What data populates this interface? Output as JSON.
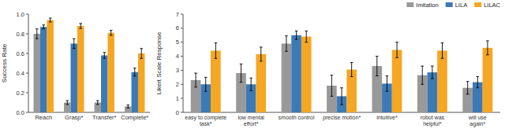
{
  "chart_data": [
    {
      "type": "bar",
      "categories": [
        "Reach",
        "Grasp*",
        "Transfer*",
        "Complete*"
      ],
      "series": [
        {
          "color": "#999999",
          "values": [
            0.8,
            0.1,
            0.1,
            0.06
          ],
          "errors": [
            0.05,
            0.02,
            0.02,
            0.015
          ]
        },
        {
          "color": "#3d7ab5",
          "values": [
            0.87,
            0.7,
            0.58,
            0.41
          ],
          "errors": [
            0.02,
            0.05,
            0.03,
            0.04
          ]
        },
        {
          "color": "#f5a623",
          "values": [
            0.94,
            0.88,
            0.81,
            0.6
          ],
          "errors": [
            0.02,
            0.025,
            0.025,
            0.05
          ]
        }
      ],
      "ylabel": "Success Rate",
      "ylim": [
        0.0,
        1.0
      ],
      "yticks": [
        {
          "value": 0,
          "label": "0.0"
        },
        0.2,
        0.4,
        0.6,
        0.8,
        {
          "value": 1,
          "label": "1.0"
        }
      ]
    },
    {
      "type": "bar",
      "categories": [
        "easy to complete\ntask*",
        "low mental\neffort*",
        "smooth control",
        "precise motion*",
        "intuitive*",
        "robot was\nhelpful*",
        "will use\nagain*"
      ],
      "series": [
        {
          "name": "Imitation",
          "color": "#999999",
          "values": [
            2.3,
            2.8,
            4.9,
            1.9,
            3.3,
            2.65,
            1.75
          ],
          "errors": [
            0.5,
            0.65,
            0.55,
            0.75,
            0.7,
            0.65,
            0.45
          ]
        },
        {
          "name": "LILA",
          "color": "#3d7ab5",
          "values": [
            2.0,
            2.0,
            5.5,
            1.15,
            2.05,
            2.85,
            2.15
          ],
          "errors": [
            0.5,
            0.45,
            0.3,
            0.6,
            0.55,
            0.45,
            0.4
          ]
        },
        {
          "name": "LILAC",
          "color": "#f5a623",
          "values": [
            4.4,
            4.15,
            5.4,
            3.05,
            4.45,
            4.4,
            4.6
          ],
          "errors": [
            0.55,
            0.5,
            0.4,
            0.5,
            0.55,
            0.55,
            0.5
          ]
        }
      ],
      "ylabel": "Likert Scale Response",
      "ylim": [
        0,
        7
      ],
      "yticks": [
        0,
        1,
        2,
        3,
        4,
        5,
        6,
        7
      ],
      "legend": "upper right"
    }
  ]
}
